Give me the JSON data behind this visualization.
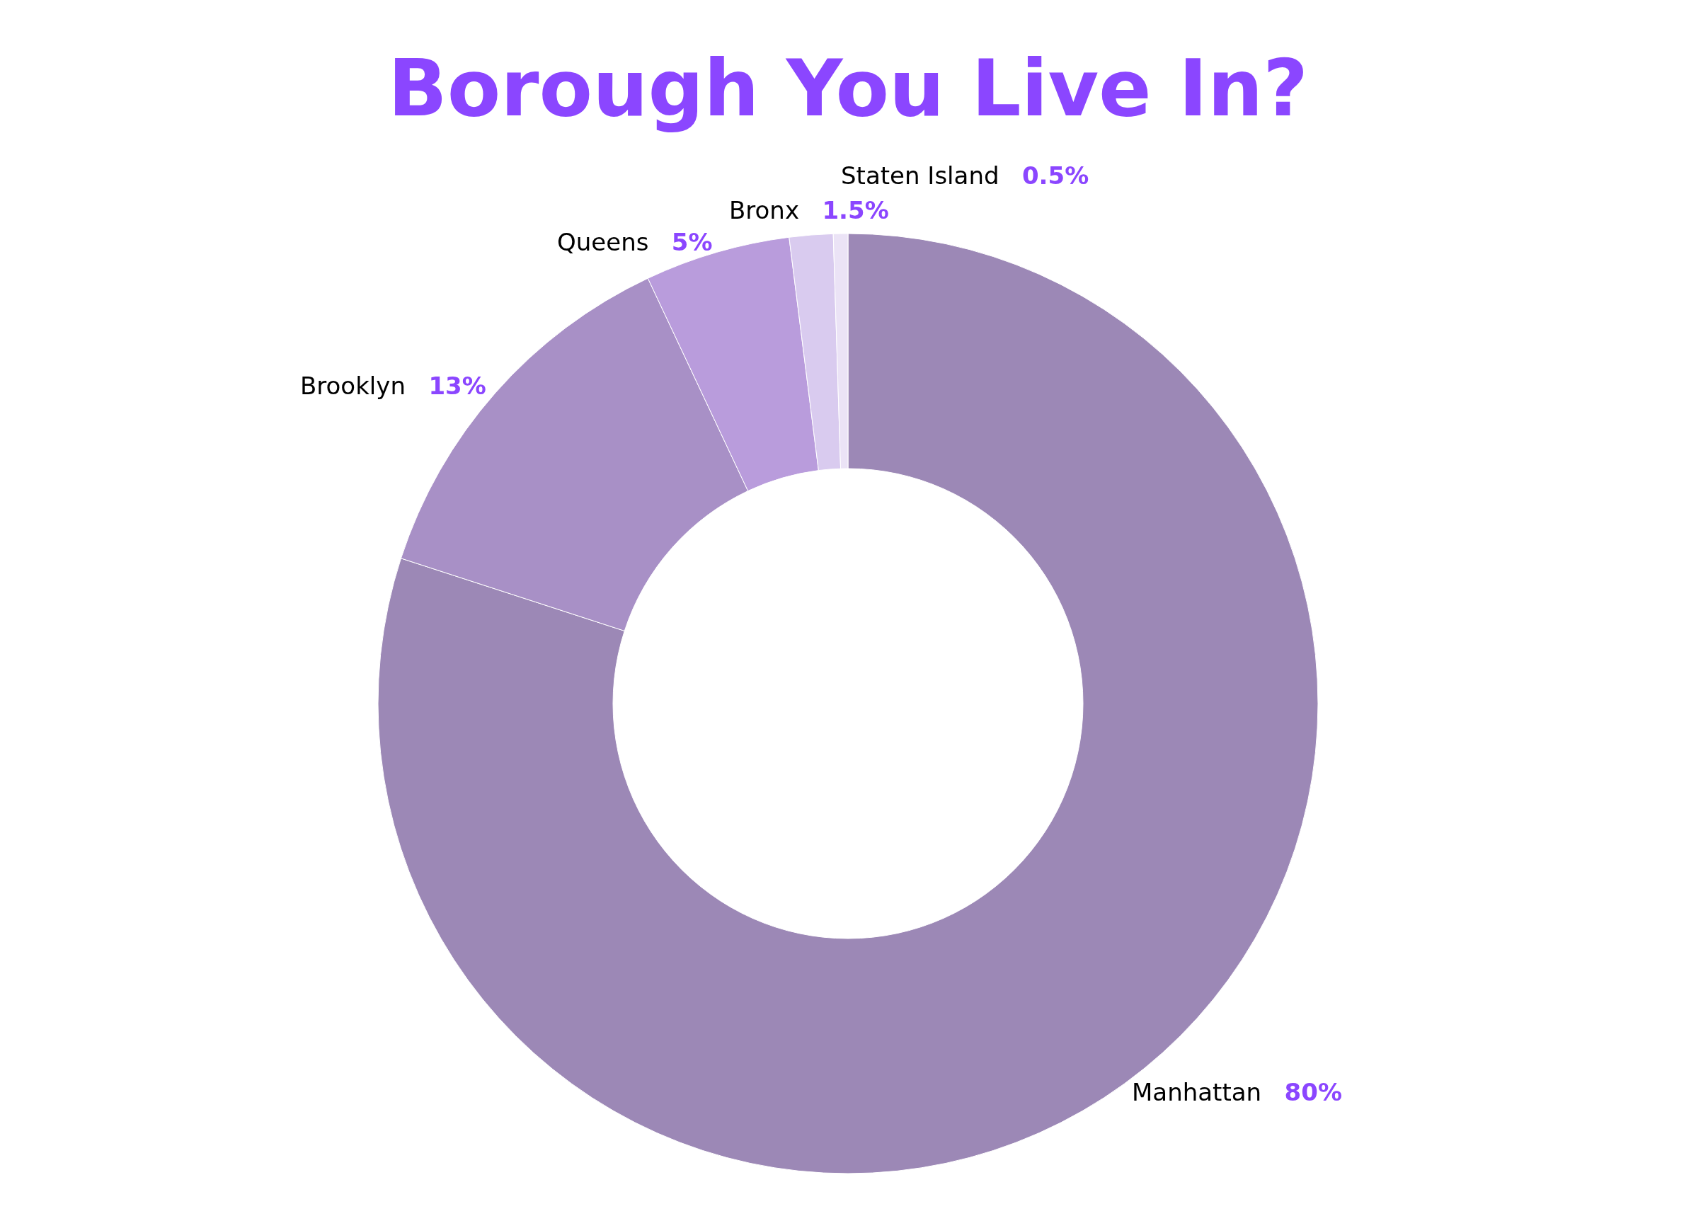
{
  "chart_data": {
    "type": "donut",
    "title": "Borough You Live In?",
    "categories": [
      "Manhattan",
      "Brooklyn",
      "Queens",
      "Bronx",
      "Staten Island"
    ],
    "values": [
      80,
      13,
      5,
      1.5,
      0.5
    ],
    "value_labels": [
      "80%",
      "13%",
      "5%",
      "1.5%",
      "0.5%"
    ],
    "colors": [
      "#9c88b6",
      "#a890c6",
      "#b99cdc",
      "#d9cbef",
      "#ebe3f6"
    ]
  }
}
